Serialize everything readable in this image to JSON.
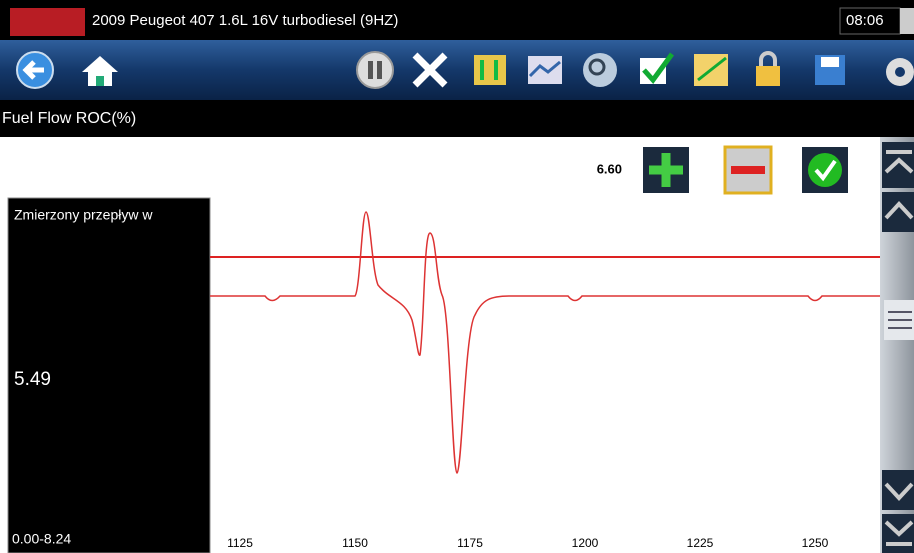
{
  "header": {
    "title": "2009 Peugeot 407 1.6L 16V turbodiesel  (9HZ)",
    "time": "08:06"
  },
  "parameter": {
    "name": "Fuel Flow ROC(%)"
  },
  "threshold": {
    "value": "6.60"
  },
  "panel": {
    "label": "Zmierzony przepływ w",
    "value": "5.49",
    "range": "0.00-8.24"
  },
  "x_axis": {
    "labels": [
      "1125",
      "1150",
      "1175",
      "1200",
      "1225",
      "1250"
    ]
  }
}
